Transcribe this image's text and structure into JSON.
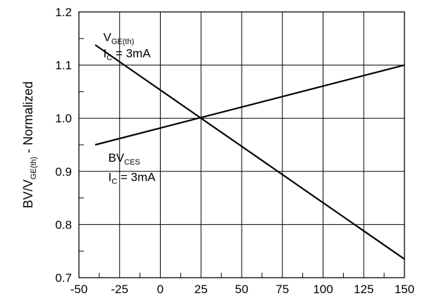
{
  "chart_data": {
    "type": "line",
    "title": "",
    "xlabel": "",
    "ylabel_parts": [
      "BV/V",
      "GE(th)",
      " - Normalized"
    ],
    "xlim": [
      -50,
      150
    ],
    "ylim": [
      0.7,
      1.2
    ],
    "x_ticks": [
      -50,
      -25,
      0,
      25,
      50,
      75,
      100,
      125,
      150
    ],
    "x_tick_labels": [
      "-50",
      "-25",
      "0",
      "25",
      "50",
      "75",
      "100",
      "125",
      "150"
    ],
    "y_ticks": [
      0.7,
      0.8,
      0.9,
      1.0,
      1.1,
      1.2
    ],
    "y_tick_labels": [
      "0.7",
      "0.8",
      "0.9",
      "1.0",
      "1.1",
      "1.2"
    ],
    "grid": true,
    "line_color": "#000000",
    "series": [
      {
        "name": "VGE(th)",
        "x": [
          -40,
          150
        ],
        "y": [
          0.95,
          1.1
        ]
      },
      {
        "name": "BVCES",
        "x": [
          -40,
          150
        ],
        "y": [
          1.138,
          0.735
        ]
      }
    ],
    "annotations": [
      {
        "series": 0,
        "main": "V",
        "sub": "GE(th)",
        "cond_main": "I",
        "cond_sub": "C",
        "cond_value": " = 3mA",
        "data_x": -35,
        "data_y_line1": 1.145,
        "data_y_line2": 1.115
      },
      {
        "series": 1,
        "main": "BV",
        "sub": "CES",
        "cond_main": "I",
        "cond_sub": "C",
        "cond_value": " = 3mA",
        "data_x": -32,
        "data_y_line1": 0.918,
        "data_y_line2": 0.882
      }
    ]
  }
}
